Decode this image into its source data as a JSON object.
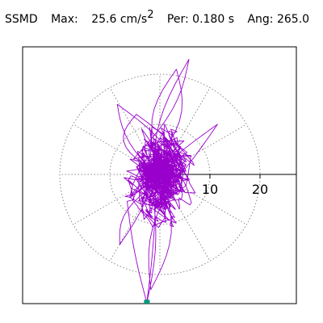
{
  "header": {
    "station": "SSMD",
    "max_label": "Max:",
    "max_value": "25.6 cm/s",
    "max_exponent": "2",
    "per_label": "Per:",
    "per_value": "0.180 s",
    "ang_label": "Ang:",
    "ang_value": "265.0"
  },
  "colors": {
    "trace": "#9900cc",
    "marker": "#009977",
    "grid": "#888888",
    "axis": "#000000",
    "frame": "#000000"
  },
  "chart_data": {
    "type": "polar-hodogram",
    "title": "SSMD",
    "max_value": 25.6,
    "max_unit": "cm/s^2",
    "period_s": 0.18,
    "angle_deg": 265.0,
    "radial_rings": [
      10,
      20
    ],
    "ring_tick_labels": [
      "10",
      "20"
    ],
    "spoke_angles_deg": [
      0,
      30,
      60,
      90,
      120,
      150,
      180,
      210,
      240,
      270,
      300,
      330
    ],
    "x_range": [
      -27,
      27
    ],
    "y_range": [
      -27,
      27
    ],
    "grid": true,
    "trace_peaks": [
      {
        "x": 5.8,
        "y": 23.0
      },
      {
        "x": 3.3,
        "y": 21.0
      },
      {
        "x": -2.6,
        "y": -25.6
      },
      {
        "x": -1.8,
        "y": -23.0
      },
      {
        "x": -8.5,
        "y": 14.0
      },
      {
        "x": 11.5,
        "y": 10.0
      },
      {
        "x": -8.0,
        "y": -14.0
      },
      {
        "x": -4.7,
        "y": 12.0
      }
    ],
    "end_marker": {
      "x": -2.6,
      "y": -25.6
    }
  }
}
